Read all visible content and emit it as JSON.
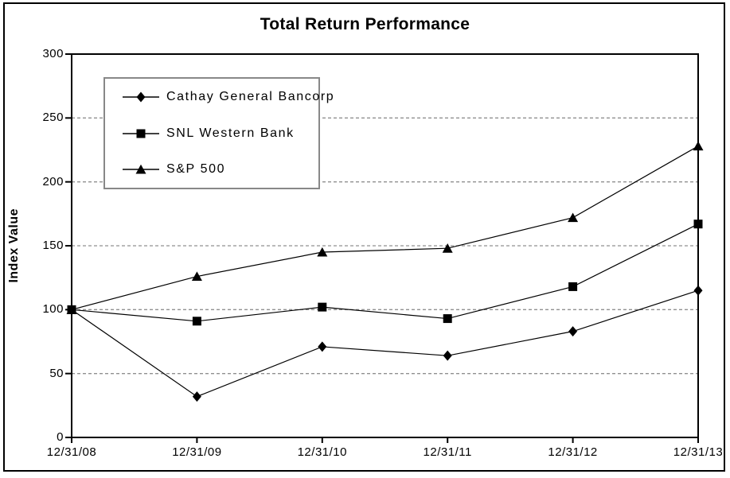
{
  "chart_data": {
    "type": "line",
    "title": "Total Return Performance",
    "ylabel": "Index Value",
    "xlabel": "",
    "categories": [
      "12/31/08",
      "12/31/09",
      "12/31/10",
      "12/31/11",
      "12/31/12",
      "12/31/13"
    ],
    "series": [
      {
        "name": "Cathay General Bancorp",
        "marker": "diamond",
        "values": [
          100,
          32,
          71,
          64,
          83,
          115
        ]
      },
      {
        "name": "SNL Western Bank",
        "marker": "square",
        "values": [
          100,
          91,
          102,
          93,
          118,
          167
        ]
      },
      {
        "name": "S&P 500",
        "marker": "triangle",
        "values": [
          100,
          126,
          145,
          148,
          172,
          228
        ]
      }
    ],
    "ylim": [
      0,
      300
    ],
    "yticks": [
      0,
      50,
      100,
      150,
      200,
      250,
      300
    ],
    "grid": "horizontal-dashed",
    "legend_position": "upper-left-inside",
    "colors": {
      "series": "#000000",
      "grid": "#909090",
      "frame": "#000000",
      "legend_border": "#888888",
      "background": "#ffffff"
    }
  }
}
